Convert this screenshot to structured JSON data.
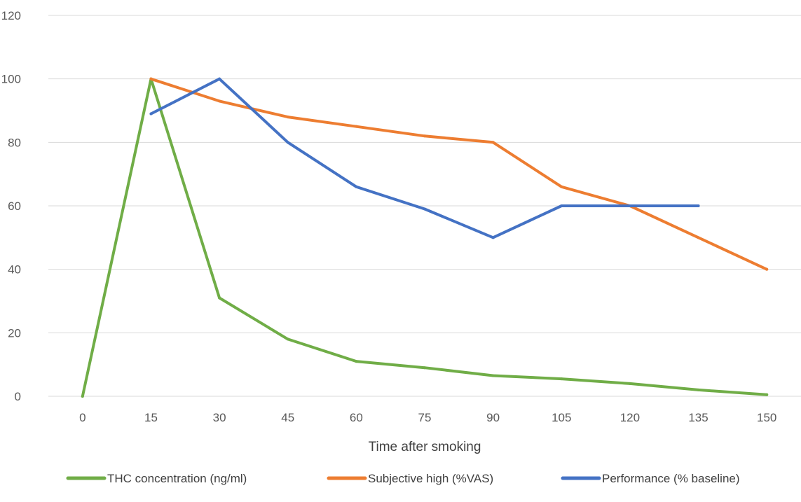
{
  "chart_data": {
    "type": "line",
    "xlabel": "Time after smoking",
    "ylabel": "",
    "ylim": [
      0,
      120
    ],
    "ytick_step": 20,
    "x": [
      0,
      15,
      30,
      45,
      60,
      75,
      90,
      105,
      120,
      135,
      150
    ],
    "grid": true,
    "legend_position": "bottom",
    "series": [
      {
        "name": "THC concentration (ng/ml)",
        "color": "#70AD47",
        "values": [
          0,
          100,
          31,
          18,
          11,
          9,
          6.5,
          5.5,
          4,
          2,
          0.5
        ]
      },
      {
        "name": "Subjective high (%VAS)",
        "color": "#ED7D31",
        "values": [
          null,
          100,
          93,
          88,
          85,
          82,
          80,
          66,
          60,
          50,
          40
        ]
      },
      {
        "name": "Performance (% baseline)",
        "color": "#4472C4",
        "values": [
          null,
          89,
          100,
          80,
          66,
          59,
          50,
          60,
          60,
          60,
          null
        ]
      }
    ]
  }
}
